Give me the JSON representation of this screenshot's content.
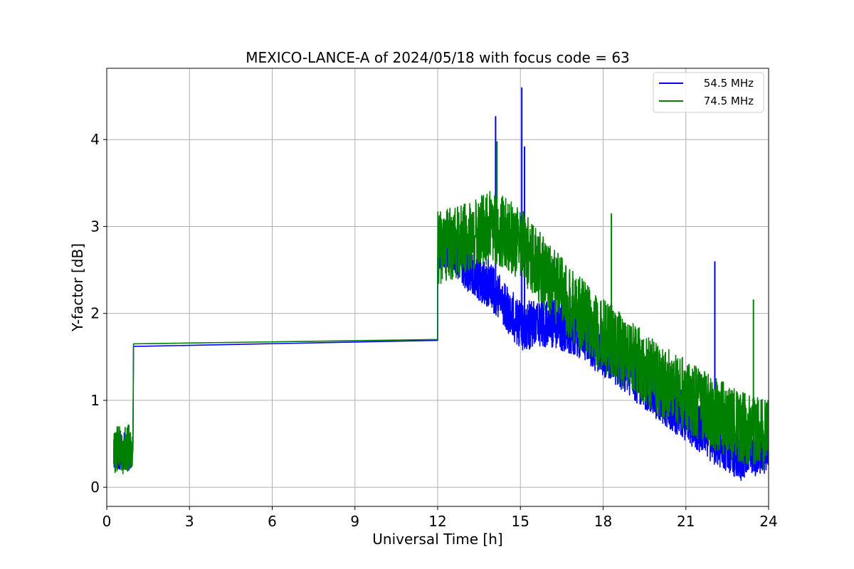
{
  "chart_data": {
    "type": "line",
    "title": "MEXICO-LANCE-A of 2024/05/18 with focus code = 63",
    "xlabel": "Universal Time [h]",
    "ylabel": "Y-factor [dB]",
    "xlim": [
      0,
      24
    ],
    "ylim": [
      -0.22,
      4.82
    ],
    "xticks": [
      0,
      3,
      6,
      9,
      12,
      15,
      18,
      21,
      24
    ],
    "yticks": [
      0,
      1,
      2,
      3,
      4
    ],
    "grid": true,
    "legend_position": "top-right",
    "series": [
      {
        "name": "54.5 MHz",
        "color": "#0000ff",
        "segments": [
          {
            "kind": "noise",
            "x": [
              0.25,
              0.95
            ],
            "center": [
              0.42,
              0.4
            ],
            "amp": 0.22,
            "seed": 11
          },
          {
            "kind": "line",
            "x": [
              0.97,
              12.0
            ],
            "y": [
              1.62,
              1.69
            ]
          },
          {
            "kind": "noise",
            "x": [
              12.0,
              24.0
            ],
            "center_x": [
              12.0,
              12.5,
              13.0,
              14.0,
              15.0,
              16.0,
              17.0,
              18.0,
              19.0,
              20.0,
              21.0,
              22.0,
              23.0,
              24.0
            ],
            "center_y": [
              2.75,
              2.8,
              2.55,
              2.3,
              1.85,
              1.9,
              1.8,
              1.55,
              1.3,
              1.05,
              0.8,
              0.55,
              0.35,
              0.45
            ],
            "amp": 0.28,
            "seed": 23
          },
          {
            "kind": "spikes",
            "x": [
              14.1,
              15.05,
              15.15,
              22.05
            ],
            "y": [
              4.27,
              4.6,
              3.92,
              2.6
            ]
          }
        ]
      },
      {
        "name": "74.5 MHz",
        "color": "#008000",
        "segments": [
          {
            "kind": "noise",
            "x": [
              0.25,
              0.95
            ],
            "center": [
              0.42,
              0.45
            ],
            "amp": 0.28,
            "seed": 5
          },
          {
            "kind": "line",
            "x": [
              0.97,
              12.0
            ],
            "y": [
              1.65,
              1.7
            ]
          },
          {
            "kind": "noise",
            "x": [
              12.0,
              24.0
            ],
            "center_x": [
              12.0,
              13.0,
              14.0,
              15.0,
              16.0,
              17.0,
              18.0,
              19.0,
              20.0,
              21.0,
              22.0,
              23.0,
              24.0
            ],
            "center_y": [
              2.75,
              2.85,
              3.0,
              2.8,
              2.4,
              2.05,
              1.75,
              1.5,
              1.25,
              1.05,
              0.85,
              0.7,
              0.6
            ],
            "amp": 0.42,
            "seed": 41
          },
          {
            "kind": "spikes",
            "x": [
              14.15,
              18.3,
              23.45
            ],
            "y": [
              3.98,
              3.15,
              2.16
            ]
          }
        ]
      }
    ]
  }
}
